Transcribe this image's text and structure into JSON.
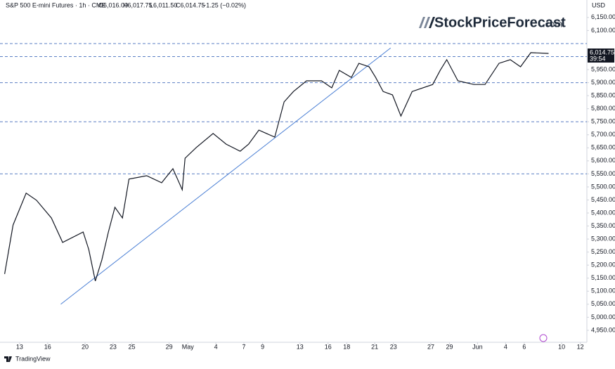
{
  "header": {
    "symbol": "S&P 500 E-mini Futures · 1h · CME",
    "ohlc": [
      "O6,016.00",
      "H6,017.75",
      "L6,011.50",
      "C6,014.75"
    ],
    "change": "−1.25 (−0.02%)"
  },
  "logo": {
    "brand": "StockPriceForecast",
    "suffix": ".com"
  },
  "footer": {
    "brand": "TradingView"
  },
  "chart_data": {
    "type": "line",
    "currency": "USD",
    "color": "#131722",
    "x": [
      -1.6,
      -0.7,
      0.7,
      1.8,
      3.4,
      4.6,
      6.8,
      7.4,
      8.1,
      8.8,
      9.5,
      10.2,
      11.0,
      11.7,
      13.6,
      15.2,
      16.4,
      17.4,
      17.7,
      18.9,
      20.7,
      22.1,
      23.6,
      24.5,
      25.6,
      27.3,
      28.3,
      29.3,
      30.7,
      32.3,
      33.4,
      34.2,
      35.5,
      36.3,
      37.4,
      38.1,
      38.9,
      39.9,
      40.8,
      42.0,
      44.2,
      45.0,
      45.7,
      46.9,
      48.6,
      49.8,
      51.3,
      52.5,
      53.6,
      54.7,
      56.6
    ],
    "values": [
      5166,
      5354,
      5476,
      5449,
      5381,
      5287,
      5327,
      5260,
      5139,
      5220,
      5327,
      5422,
      5381,
      5530,
      5543,
      5516,
      5570,
      5489,
      5610,
      5651,
      5705,
      5664,
      5637,
      5664,
      5718,
      5691,
      5826,
      5866,
      5907,
      5907,
      5880,
      5947,
      5920,
      5974,
      5961,
      5920,
      5866,
      5853,
      5772,
      5866,
      5893,
      5947,
      5988,
      5907,
      5893,
      5893,
      5974,
      5988,
      5961,
      6015,
      6012
    ],
    "xlim": [
      -2.1,
      60.7
    ],
    "xticks": [
      {
        "value": 0,
        "label": "13"
      },
      {
        "value": 3,
        "label": "16"
      },
      {
        "value": 7,
        "label": "20"
      },
      {
        "value": 10,
        "label": "23"
      },
      {
        "value": 12,
        "label": "25"
      },
      {
        "value": 16,
        "label": "29"
      },
      {
        "value": 18,
        "label": "May"
      },
      {
        "value": 21,
        "label": "4"
      },
      {
        "value": 24,
        "label": "7"
      },
      {
        "value": 26,
        "label": "9"
      },
      {
        "value": 30,
        "label": "13"
      },
      {
        "value": 33,
        "label": "16"
      },
      {
        "value": 35,
        "label": "18"
      },
      {
        "value": 38,
        "label": "21"
      },
      {
        "value": 40,
        "label": "23"
      },
      {
        "value": 44,
        "label": "27"
      },
      {
        "value": 46,
        "label": "29"
      },
      {
        "value": 49,
        "label": "Jun"
      },
      {
        "value": 52,
        "label": "4"
      },
      {
        "value": 54,
        "label": "6"
      },
      {
        "value": 58,
        "label": "10"
      },
      {
        "value": 60,
        "label": "12"
      }
    ],
    "ylim": [
      4904,
      6217
    ],
    "yticks": [
      {
        "value": 6150,
        "label": "6,150.00"
      },
      {
        "value": 6100,
        "label": "6,100.00"
      },
      {
        "value": 5950,
        "label": "5,950.00"
      },
      {
        "value": 5900,
        "label": "5,900.00"
      },
      {
        "value": 5850,
        "label": "5,850.00"
      },
      {
        "value": 5800,
        "label": "5,800.00"
      },
      {
        "value": 5750,
        "label": "5,750.00"
      },
      {
        "value": 5700,
        "label": "5,700.00"
      },
      {
        "value": 5650,
        "label": "5,650.00"
      },
      {
        "value": 5600,
        "label": "5,600.00"
      },
      {
        "value": 5550,
        "label": "5,550.00"
      },
      {
        "value": 5500,
        "label": "5,500.00"
      },
      {
        "value": 5450,
        "label": "5,450.00"
      },
      {
        "value": 5400,
        "label": "5,400.00"
      },
      {
        "value": 5350,
        "label": "5,350.00"
      },
      {
        "value": 5300,
        "label": "5,300.00"
      },
      {
        "value": 5250,
        "label": "5,250.00"
      },
      {
        "value": 5200,
        "label": "5,200.00"
      },
      {
        "value": 5150,
        "label": "5,150.00"
      },
      {
        "value": 5100,
        "label": "5,100.00"
      },
      {
        "value": 5050,
        "label": "5,050.00"
      },
      {
        "value": 5000,
        "label": "5,000.00"
      },
      {
        "value": 4950,
        "label": "4,950.00"
      }
    ],
    "levels": [
      6050,
      6000,
      5900,
      5750,
      5550
    ],
    "level_color": "#5b7fc4",
    "trendline": {
      "x": [
        4.4,
        39.7
      ],
      "values": [
        5050,
        6033
      ],
      "color": "#4a7fd4"
    },
    "last_price": {
      "value": 6014.75,
      "label": "6,014.75"
    },
    "countdown": "39:54"
  }
}
